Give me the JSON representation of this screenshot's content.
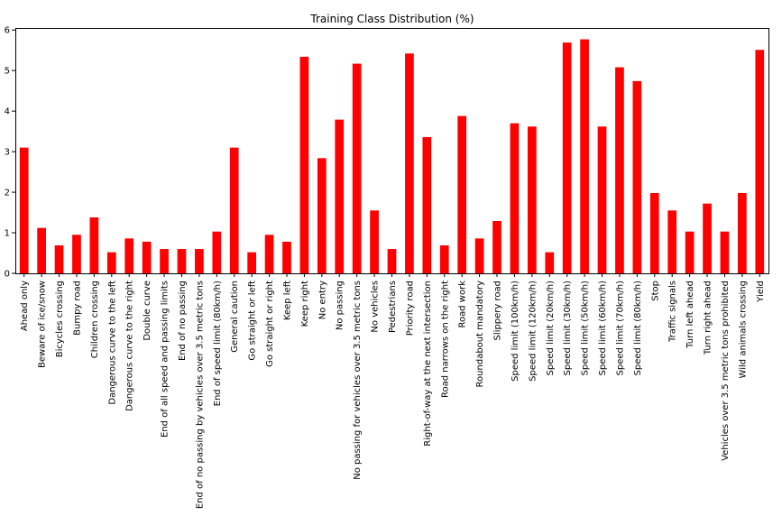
{
  "chart_data": {
    "type": "bar",
    "title": "Training Class Distribution (%)",
    "xlabel": "",
    "ylabel": "",
    "ylim": [
      0,
      6.05
    ],
    "yticks": [
      0,
      1,
      2,
      3,
      4,
      5,
      6
    ],
    "bar_color": "#ff0000",
    "grid": false,
    "categories": [
      "Ahead only",
      "Beware of ice/snow",
      "Bicycles crossing",
      "Bumpy road",
      "Children crossing",
      "Dangerous curve to the left",
      "Dangerous curve to the right",
      "Double curve",
      "End of all speed and passing limits",
      "End of no passing",
      "End of no passing by vehicles over 3.5 metric tons",
      "End of speed limit (80km/h)",
      "General caution",
      "Go straight or left",
      "Go straight or right",
      "Keep left",
      "Keep right",
      "No entry",
      "No passing",
      "No passing for vehicles over 3.5 metric tons",
      "No vehicles",
      "Pedestrians",
      "Priority road",
      "Right-of-way at the next intersection",
      "Road narrows on the right",
      "Road work",
      "Roundabout mandatory",
      "Slippery road",
      "Speed limit (100km/h)",
      "Speed limit (120km/h)",
      "Speed limit (20km/h)",
      "Speed limit (30km/h)",
      "Speed limit (50km/h)",
      "Speed limit (60km/h)",
      "Speed limit (70km/h)",
      "Speed limit (80km/h)",
      "Stop",
      "Traffic signals",
      "Turn left ahead",
      "Turn right ahead",
      "Vehicles over 3.5 metric tons prohibited",
      "Wild animals crossing",
      "Yield"
    ],
    "values": [
      3.1,
      1.12,
      0.69,
      0.95,
      1.38,
      0.52,
      0.86,
      0.78,
      0.6,
      0.6,
      0.6,
      1.03,
      3.1,
      0.52,
      0.95,
      0.78,
      5.34,
      2.84,
      3.79,
      5.17,
      1.55,
      0.6,
      5.42,
      3.36,
      0.69,
      3.88,
      0.86,
      1.29,
      3.7,
      3.62,
      0.52,
      5.69,
      5.77,
      3.62,
      5.08,
      4.74,
      1.98,
      1.55,
      1.03,
      1.72,
      1.03,
      1.98,
      5.51
    ]
  }
}
